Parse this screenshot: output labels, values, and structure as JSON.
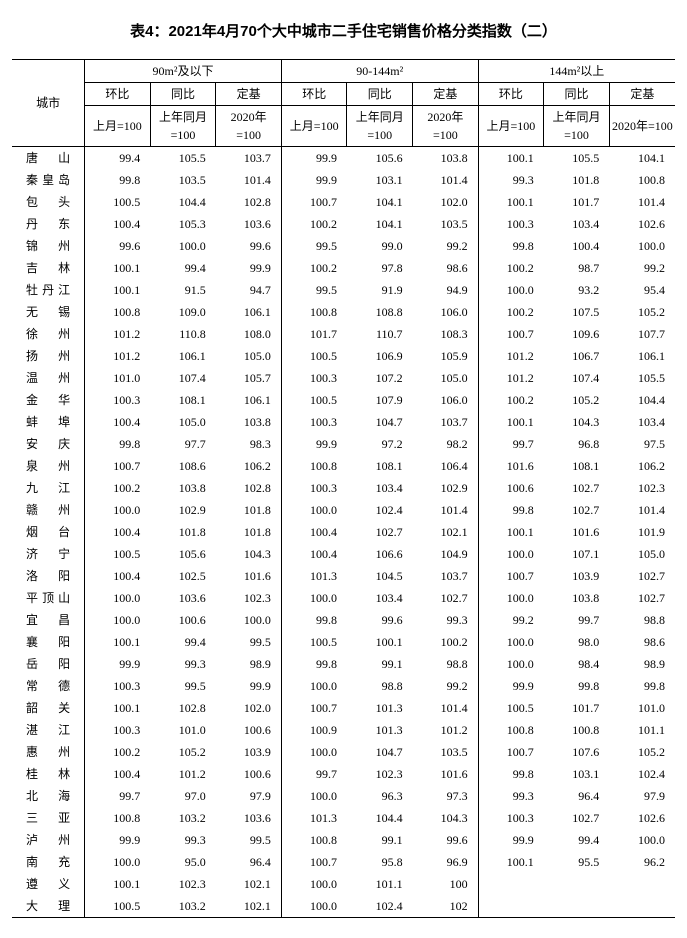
{
  "title": "表4：2021年4月70个大中城市二手住宅销售价格分类指数（二）",
  "header": {
    "city": "城市",
    "group1": "90m²及以下",
    "group2": "90-144m²",
    "group3": "144m²以上",
    "mom": "环比",
    "yoy": "同比",
    "base": "定基",
    "mom_sub": "上月=100",
    "yoy_sub": "上年同月=100",
    "base_sub": "2020年=100"
  },
  "rows": [
    {
      "city": "唐　山",
      "v": [
        "99.4",
        "105.5",
        "103.7",
        "99.9",
        "105.6",
        "103.8",
        "100.1",
        "105.5",
        "104.1"
      ]
    },
    {
      "city": "秦皇岛",
      "v": [
        "99.8",
        "103.5",
        "101.4",
        "99.9",
        "103.1",
        "101.4",
        "99.3",
        "101.8",
        "100.8"
      ]
    },
    {
      "city": "包　头",
      "v": [
        "100.5",
        "104.4",
        "102.8",
        "100.7",
        "104.1",
        "102.0",
        "100.1",
        "101.7",
        "101.4"
      ]
    },
    {
      "city": "丹　东",
      "v": [
        "100.4",
        "105.3",
        "103.6",
        "100.2",
        "104.1",
        "103.5",
        "100.3",
        "103.4",
        "102.6"
      ]
    },
    {
      "city": "锦　州",
      "v": [
        "99.6",
        "100.0",
        "99.6",
        "99.5",
        "99.0",
        "99.2",
        "99.8",
        "100.4",
        "100.0"
      ]
    },
    {
      "city": "吉　林",
      "v": [
        "100.1",
        "99.4",
        "99.9",
        "100.2",
        "97.8",
        "98.6",
        "100.2",
        "98.7",
        "99.2"
      ]
    },
    {
      "city": "牡丹江",
      "v": [
        "100.1",
        "91.5",
        "94.7",
        "99.5",
        "91.9",
        "94.9",
        "100.0",
        "93.2",
        "95.4"
      ]
    },
    {
      "city": "无　锡",
      "v": [
        "100.8",
        "109.0",
        "106.1",
        "100.8",
        "108.8",
        "106.0",
        "100.2",
        "107.5",
        "105.2"
      ]
    },
    {
      "city": "徐　州",
      "v": [
        "101.2",
        "110.8",
        "108.0",
        "101.7",
        "110.7",
        "108.3",
        "100.7",
        "109.6",
        "107.7"
      ]
    },
    {
      "city": "扬　州",
      "v": [
        "101.2",
        "106.1",
        "105.0",
        "100.5",
        "106.9",
        "105.9",
        "101.2",
        "106.7",
        "106.1"
      ]
    },
    {
      "city": "温　州",
      "v": [
        "101.0",
        "107.4",
        "105.7",
        "100.3",
        "107.2",
        "105.0",
        "101.2",
        "107.4",
        "105.5"
      ]
    },
    {
      "city": "金　华",
      "v": [
        "100.3",
        "108.1",
        "106.1",
        "100.5",
        "107.9",
        "106.0",
        "100.2",
        "105.2",
        "104.4"
      ]
    },
    {
      "city": "蚌　埠",
      "v": [
        "100.4",
        "105.0",
        "103.8",
        "100.3",
        "104.7",
        "103.7",
        "100.1",
        "104.3",
        "103.4"
      ]
    },
    {
      "city": "安　庆",
      "v": [
        "99.8",
        "97.7",
        "98.3",
        "99.9",
        "97.2",
        "98.2",
        "99.7",
        "96.8",
        "97.5"
      ]
    },
    {
      "city": "泉　州",
      "v": [
        "100.7",
        "108.6",
        "106.2",
        "100.8",
        "108.1",
        "106.4",
        "101.6",
        "108.1",
        "106.2"
      ]
    },
    {
      "city": "九　江",
      "v": [
        "100.2",
        "103.8",
        "102.8",
        "100.3",
        "103.4",
        "102.9",
        "100.6",
        "102.7",
        "102.3"
      ]
    },
    {
      "city": "赣　州",
      "v": [
        "100.0",
        "102.9",
        "101.8",
        "100.0",
        "102.4",
        "101.4",
        "99.8",
        "102.7",
        "101.4"
      ]
    },
    {
      "city": "烟　台",
      "v": [
        "100.4",
        "101.8",
        "101.8",
        "100.4",
        "102.7",
        "102.1",
        "100.1",
        "101.6",
        "101.9"
      ]
    },
    {
      "city": "济　宁",
      "v": [
        "100.5",
        "105.6",
        "104.3",
        "100.4",
        "106.6",
        "104.9",
        "100.0",
        "107.1",
        "105.0"
      ]
    },
    {
      "city": "洛　阳",
      "v": [
        "100.4",
        "102.5",
        "101.6",
        "101.3",
        "104.5",
        "103.7",
        "100.7",
        "103.9",
        "102.7"
      ]
    },
    {
      "city": "平顶山",
      "v": [
        "100.0",
        "103.6",
        "102.3",
        "100.0",
        "103.4",
        "102.7",
        "100.0",
        "103.8",
        "102.7"
      ]
    },
    {
      "city": "宜　昌",
      "v": [
        "100.0",
        "100.6",
        "100.0",
        "99.8",
        "99.6",
        "99.3",
        "99.2",
        "99.7",
        "98.8"
      ]
    },
    {
      "city": "襄　阳",
      "v": [
        "100.1",
        "99.4",
        "99.5",
        "100.5",
        "100.1",
        "100.2",
        "100.0",
        "98.0",
        "98.6"
      ]
    },
    {
      "city": "岳　阳",
      "v": [
        "99.9",
        "99.3",
        "98.9",
        "99.8",
        "99.1",
        "98.8",
        "100.0",
        "98.4",
        "98.9"
      ]
    },
    {
      "city": "常　德",
      "v": [
        "100.3",
        "99.5",
        "99.9",
        "100.0",
        "98.8",
        "99.2",
        "99.9",
        "99.8",
        "99.8"
      ]
    },
    {
      "city": "韶　关",
      "v": [
        "100.1",
        "102.8",
        "102.0",
        "100.7",
        "101.3",
        "101.4",
        "100.5",
        "101.7",
        "101.0"
      ]
    },
    {
      "city": "湛　江",
      "v": [
        "100.3",
        "101.0",
        "100.6",
        "100.9",
        "101.3",
        "101.2",
        "100.8",
        "100.8",
        "101.1"
      ]
    },
    {
      "city": "惠　州",
      "v": [
        "100.2",
        "105.2",
        "103.9",
        "100.0",
        "104.7",
        "103.5",
        "100.7",
        "107.6",
        "105.2"
      ]
    },
    {
      "city": "桂　林",
      "v": [
        "100.4",
        "101.2",
        "100.6",
        "99.7",
        "102.3",
        "101.6",
        "99.8",
        "103.1",
        "102.4"
      ]
    },
    {
      "city": "北　海",
      "v": [
        "99.7",
        "97.0",
        "97.9",
        "100.0",
        "96.3",
        "97.3",
        "99.3",
        "96.4",
        "97.9"
      ]
    },
    {
      "city": "三　亚",
      "v": [
        "100.8",
        "103.2",
        "103.6",
        "101.3",
        "104.4",
        "104.3",
        "100.3",
        "102.7",
        "102.6"
      ]
    },
    {
      "city": "泸　州",
      "v": [
        "99.9",
        "99.3",
        "99.5",
        "100.8",
        "99.1",
        "99.6",
        "99.9",
        "99.4",
        "100.0"
      ]
    },
    {
      "city": "南　充",
      "v": [
        "100.0",
        "95.0",
        "96.4",
        "100.7",
        "95.8",
        "96.9",
        "100.1",
        "95.5",
        "96.2"
      ]
    },
    {
      "city": "遵　义",
      "v": [
        "100.1",
        "102.3",
        "102.1",
        "100.0",
        "101.1",
        "100",
        "",
        "",
        ""
      ]
    },
    {
      "city": "大　理",
      "v": [
        "100.5",
        "103.2",
        "102.1",
        "100.0",
        "102.4",
        "102",
        "",
        "",
        ""
      ]
    }
  ]
}
